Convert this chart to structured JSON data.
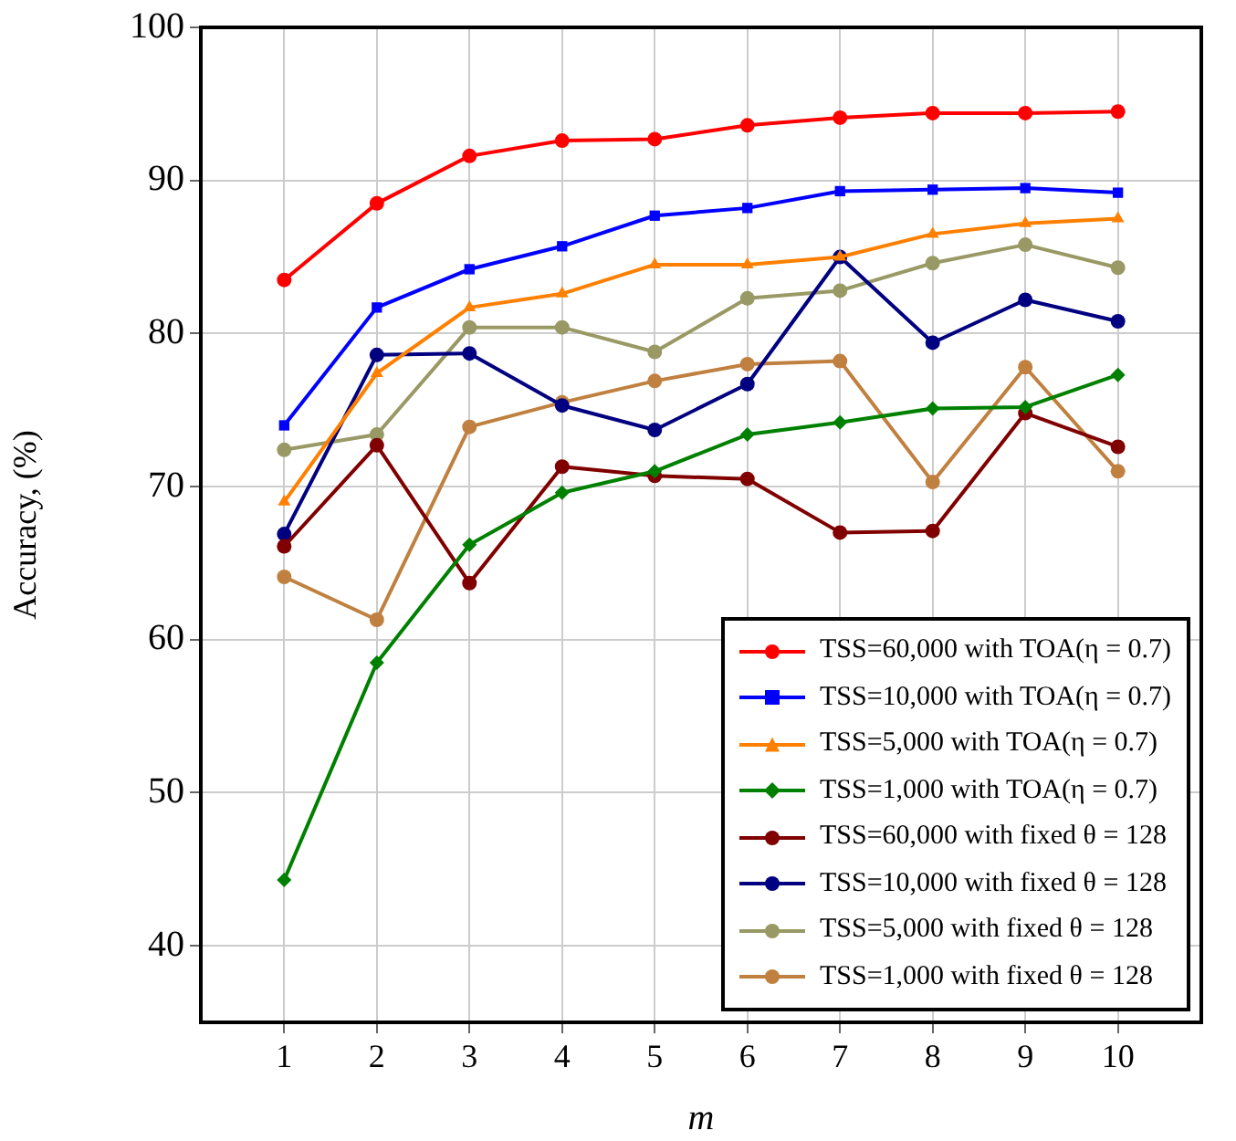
{
  "chart_data": {
    "type": "line",
    "xlabel": "m",
    "ylabel": "Accuracy, (%)",
    "x": [
      1,
      2,
      3,
      4,
      5,
      6,
      7,
      8,
      9,
      10
    ],
    "xlim": [
      0.1,
      10.9
    ],
    "xticks": [
      1,
      2,
      3,
      4,
      5,
      6,
      7,
      8,
      9,
      10
    ],
    "ylim": [
      35,
      100
    ],
    "yticks": [
      40,
      50,
      60,
      70,
      80,
      90,
      100
    ],
    "grid": true,
    "legend": "bottom right",
    "line_style": "solid",
    "series": [
      {
        "name": "TSS=60,000 with TOA(η = 0.7)",
        "color": "#ff0000",
        "marker": "circle",
        "values": [
          83.5,
          88.5,
          91.6,
          92.6,
          92.7,
          93.6,
          94.1,
          94.4,
          94.4,
          94.5
        ]
      },
      {
        "name": "TSS=10,000 with TOA(η = 0.7)",
        "color": "#0000ff",
        "marker": "square",
        "values": [
          74.0,
          81.7,
          84.2,
          85.7,
          87.7,
          88.2,
          89.3,
          89.4,
          89.5,
          89.2
        ]
      },
      {
        "name": "TSS=5,000 with TOA(η = 0.7)",
        "color": "#ff8000",
        "marker": "triangle",
        "values": [
          69.0,
          77.4,
          81.7,
          82.6,
          84.5,
          84.5,
          85.0,
          86.5,
          87.2,
          87.5
        ]
      },
      {
        "name": "TSS=1,000 with TOA(η = 0.7)",
        "color": "#008000",
        "marker": "diamond",
        "values": [
          44.3,
          58.5,
          66.2,
          69.6,
          71.0,
          73.4,
          74.2,
          75.1,
          75.2,
          77.3
        ]
      },
      {
        "name": "TSS=60,000 with fixed θ = 128",
        "color": "#800000",
        "marker": "circle",
        "values": [
          66.1,
          72.7,
          63.7,
          71.3,
          70.7,
          70.5,
          67.0,
          67.1,
          74.8,
          72.6
        ]
      },
      {
        "name": "TSS=10,000 with fixed θ = 128",
        "color": "#000080",
        "marker": "circle",
        "values": [
          66.9,
          78.6,
          78.7,
          75.3,
          73.7,
          76.7,
          85.0,
          79.4,
          82.2,
          80.8
        ]
      },
      {
        "name": "TSS=5,000 with fixed θ = 128",
        "color": "#999966",
        "marker": "circle",
        "values": [
          72.4,
          73.4,
          80.4,
          80.4,
          78.8,
          82.3,
          82.8,
          84.6,
          85.8,
          84.3
        ]
      },
      {
        "name": "TSS=1,000 with fixed θ = 128",
        "color": "#c08040",
        "marker": "circle",
        "values": [
          64.1,
          61.3,
          73.9,
          75.5,
          76.9,
          78.0,
          78.2,
          70.3,
          77.8,
          71.0
        ]
      }
    ]
  }
}
